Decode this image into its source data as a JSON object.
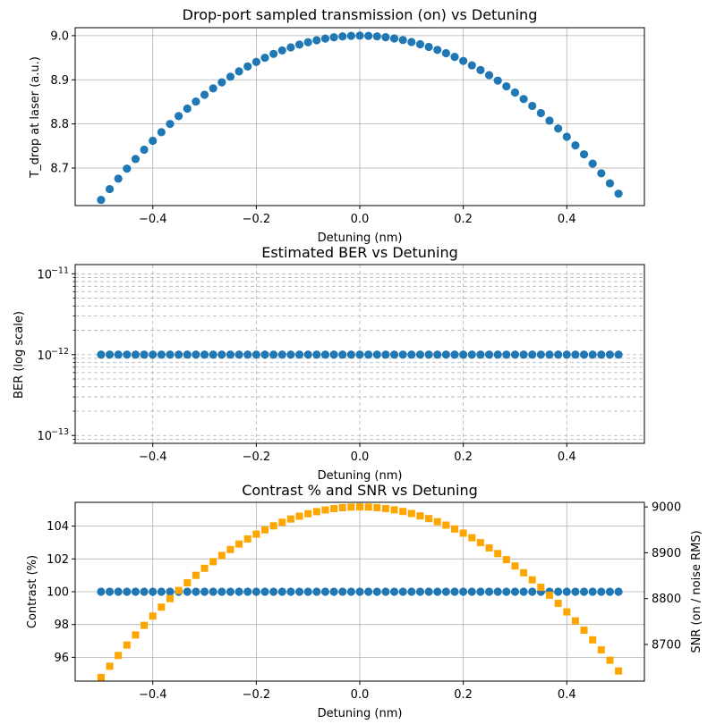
{
  "colors": {
    "series_blue": "#1f77b4",
    "series_orange": "#ffa500",
    "grid": "#b0b0b0"
  },
  "chart_data": [
    {
      "type": "scatter",
      "title": "Drop-port sampled transmission (on) vs Detuning",
      "xlabel": "Detuning (nm)",
      "ylabel": "T_drop at laser (a.u.)",
      "xlim": [
        -0.55,
        0.55
      ],
      "ylim": [
        8.615,
        9.018
      ],
      "xticks": [
        -0.4,
        -0.2,
        0.0,
        0.2,
        0.4
      ],
      "xtick_labels": [
        "−0.4",
        "−0.2",
        "0.0",
        "0.2",
        "0.4"
      ],
      "yticks": [
        8.7,
        8.8,
        8.9,
        9.0
      ],
      "ytick_labels": [
        "8.7",
        "8.8",
        "8.9",
        "9.0"
      ],
      "grid": true,
      "series": [
        {
          "marker": "circle",
          "color": "#1f77b4",
          "x_range": [
            -0.5,
            0.5
          ],
          "n_points": 61,
          "curve": "quadratic",
          "peak_x": 0.0,
          "peak_y": 9.0,
          "y_at_left": 8.628,
          "y_at_right": 8.642
        }
      ]
    },
    {
      "type": "scatter",
      "title": "Estimated BER vs Detuning",
      "xlabel": "Detuning (nm)",
      "ylabel": "BER (log scale)",
      "yscale": "log",
      "xlim": [
        -0.55,
        0.55
      ],
      "ylim": [
        8e-14,
        1.3e-11
      ],
      "xticks": [
        -0.4,
        -0.2,
        0.0,
        0.2,
        0.4
      ],
      "xtick_labels": [
        "−0.4",
        "−0.2",
        "0.0",
        "0.2",
        "0.4"
      ],
      "yticks_major": [
        1e-13,
        1e-12,
        1e-11
      ],
      "ytick_labels": [
        {
          "base": "10",
          "exp": "−13"
        },
        {
          "base": "10",
          "exp": "−12"
        },
        {
          "base": "10",
          "exp": "−11"
        }
      ],
      "grid": "dashed, major and minor",
      "series": [
        {
          "marker": "circle",
          "color": "#1f77b4",
          "x_range": [
            -0.5,
            0.5
          ],
          "n_points": 61,
          "constant_y": 1e-12
        }
      ]
    },
    {
      "type": "scatter",
      "title": "Contrast % and SNR vs Detuning",
      "xlabel": "Detuning (nm)",
      "ylabel": "Contrast (%)",
      "y2label": "SNR (on / noise RMS)",
      "xlim": [
        -0.55,
        0.55
      ],
      "ylim": [
        94.55,
        105.45
      ],
      "y2lim": [
        8620,
        9010
      ],
      "xticks": [
        -0.4,
        -0.2,
        0.0,
        0.2,
        0.4
      ],
      "xtick_labels": [
        "−0.4",
        "−0.2",
        "0.0",
        "0.2",
        "0.4"
      ],
      "yticks": [
        96,
        98,
        100,
        102,
        104
      ],
      "ytick_labels": [
        "96",
        "98",
        "100",
        "102",
        "104"
      ],
      "y2ticks": [
        8700,
        8800,
        8900,
        9000
      ],
      "y2tick_labels": [
        "8700",
        "8800",
        "8900",
        "9000"
      ],
      "grid": true,
      "series": [
        {
          "axis": "left",
          "marker": "circle",
          "color": "#1f77b4",
          "x_range": [
            -0.5,
            0.5
          ],
          "n_points": 61,
          "constant_y": 100
        },
        {
          "axis": "right",
          "marker": "square",
          "color": "#ffa500",
          "x_range": [
            -0.5,
            0.5
          ],
          "n_points": 61,
          "curve": "quadratic",
          "peak_x": 0.0,
          "peak_y": 9000,
          "y_at_left": 8628,
          "y_at_right": 8642
        }
      ]
    }
  ]
}
